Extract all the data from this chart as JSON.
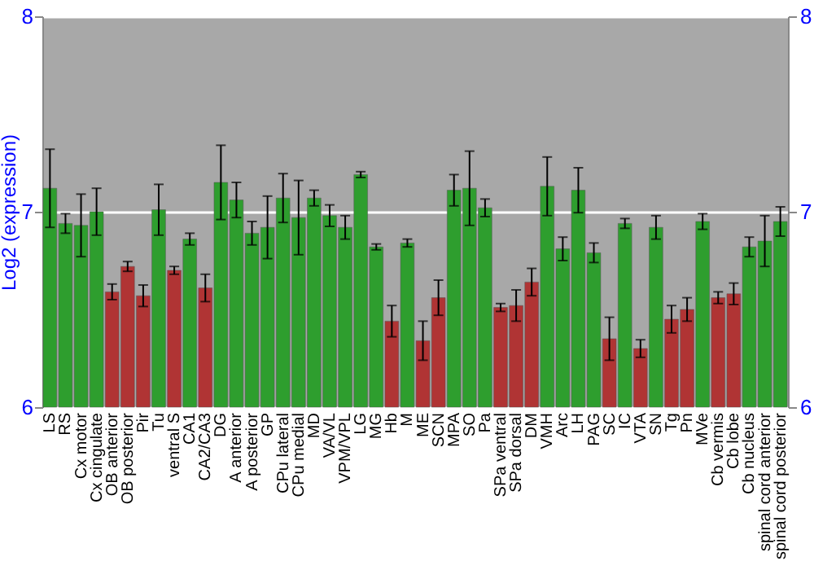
{
  "chart_data": {
    "type": "bar",
    "ylabel": "Log2 (expression)",
    "categories": [
      "LS",
      "RS",
      "Cx motor",
      "Cx cingulate",
      "OB anterior",
      "OB posterior",
      "Pir",
      "Tu",
      "ventral S",
      "CA1",
      "CA2/CA3",
      "DG",
      "A anterior",
      "A posterior",
      "GP",
      "CPu lateral",
      "CPu medial",
      "MD",
      "VA/VL",
      "VPM/VPL",
      "LG",
      "MG",
      "Hb",
      "M",
      "ME",
      "SCN",
      "MPA",
      "SO",
      "Pa",
      "SPa ventral",
      "SPa dorsal",
      "DM",
      "VMH",
      "Arc",
      "LH",
      "PAG",
      "SC",
      "IC",
      "VTA",
      "SN",
      "Tg",
      "Pn",
      "MVe",
      "Cb vermis",
      "Cb lobe",
      "Cb nucleus",
      "spinal cord anterior",
      "spinal cord posterior"
    ],
    "values": [
      7.12,
      6.94,
      6.93,
      7.0,
      6.59,
      6.72,
      6.57,
      7.01,
      6.7,
      6.86,
      6.61,
      7.15,
      7.06,
      6.89,
      6.92,
      7.07,
      6.97,
      7.07,
      6.98,
      6.92,
      7.19,
      6.82,
      6.44,
      6.84,
      6.34,
      6.56,
      7.11,
      7.12,
      7.02,
      6.51,
      6.52,
      6.64,
      7.13,
      6.81,
      7.11,
      6.79,
      6.35,
      6.94,
      6.3,
      6.92,
      6.45,
      6.5,
      6.95,
      6.56,
      6.58,
      6.82,
      6.85,
      6.95
    ],
    "errors": [
      0.2,
      0.05,
      0.16,
      0.12,
      0.04,
      0.025,
      0.055,
      0.13,
      0.02,
      0.03,
      0.07,
      0.19,
      0.09,
      0.06,
      0.16,
      0.125,
      0.19,
      0.04,
      0.055,
      0.06,
      0.015,
      0.015,
      0.08,
      0.02,
      0.1,
      0.09,
      0.08,
      0.19,
      0.045,
      0.02,
      0.08,
      0.07,
      0.15,
      0.06,
      0.115,
      0.05,
      0.11,
      0.025,
      0.045,
      0.06,
      0.07,
      0.06,
      0.04,
      0.03,
      0.055,
      0.05,
      0.13,
      0.075
    ],
    "colors": [
      "#2e9e2e",
      "#2e9e2e",
      "#2e9e2e",
      "#2e9e2e",
      "#b03434",
      "#b03434",
      "#b03434",
      "#2e9e2e",
      "#b03434",
      "#2e9e2e",
      "#b03434",
      "#2e9e2e",
      "#2e9e2e",
      "#2e9e2e",
      "#2e9e2e",
      "#2e9e2e",
      "#2e9e2e",
      "#2e9e2e",
      "#2e9e2e",
      "#2e9e2e",
      "#2e9e2e",
      "#2e9e2e",
      "#b03434",
      "#2e9e2e",
      "#b03434",
      "#b03434",
      "#2e9e2e",
      "#2e9e2e",
      "#2e9e2e",
      "#b03434",
      "#b03434",
      "#b03434",
      "#2e9e2e",
      "#2e9e2e",
      "#2e9e2e",
      "#2e9e2e",
      "#b03434",
      "#2e9e2e",
      "#b03434",
      "#2e9e2e",
      "#b03434",
      "#b03434",
      "#2e9e2e",
      "#b03434",
      "#b03434",
      "#2e9e2e",
      "#2e9e2e",
      "#2e9e2e"
    ],
    "ylim": [
      6,
      8
    ],
    "yticks": [
      6,
      7,
      8
    ],
    "y2lim": [
      6,
      8
    ],
    "y2ticks": [
      6,
      7,
      8
    ],
    "grid": "y"
  }
}
